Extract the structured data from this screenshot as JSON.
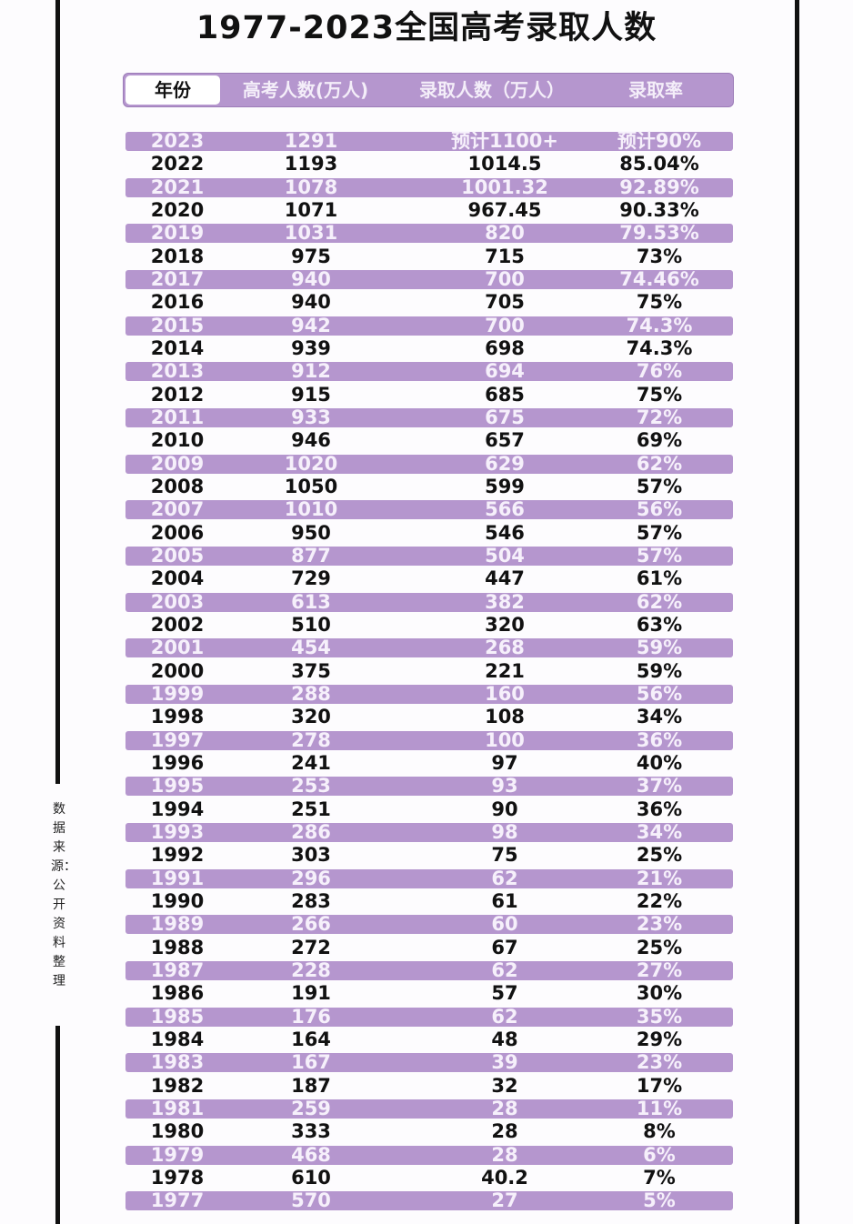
{
  "title": "1977-2023全国高考录取人数",
  "source_note": "数据来源：公开资料整理",
  "colors": {
    "row_highlight": "#b596ce",
    "text": "#111111",
    "highlight_text": "#f6f0fb"
  },
  "chart_data": {
    "type": "table",
    "title": "1977-2023全国高考录取人数",
    "columns": [
      "年份",
      "高考人数(万人)",
      "录取人数（万人）",
      "录取率"
    ],
    "rows": [
      [
        "2023",
        "1291",
        "预计1100+",
        "预计90%"
      ],
      [
        "2022",
        "1193",
        "1014.5",
        "85.04%"
      ],
      [
        "2021",
        "1078",
        "1001.32",
        "92.89%"
      ],
      [
        "2020",
        "1071",
        "967.45",
        "90.33%"
      ],
      [
        "2019",
        "1031",
        "820",
        "79.53%"
      ],
      [
        "2018",
        "975",
        "715",
        "73%"
      ],
      [
        "2017",
        "940",
        "700",
        "74.46%"
      ],
      [
        "2016",
        "940",
        "705",
        "75%"
      ],
      [
        "2015",
        "942",
        "700",
        "74.3%"
      ],
      [
        "2014",
        "939",
        "698",
        "74.3%"
      ],
      [
        "2013",
        "912",
        "694",
        "76%"
      ],
      [
        "2012",
        "915",
        "685",
        "75%"
      ],
      [
        "2011",
        "933",
        "675",
        "72%"
      ],
      [
        "2010",
        "946",
        "657",
        "69%"
      ],
      [
        "2009",
        "1020",
        "629",
        "62%"
      ],
      [
        "2008",
        "1050",
        "599",
        "57%"
      ],
      [
        "2007",
        "1010",
        "566",
        "56%"
      ],
      [
        "2006",
        "950",
        "546",
        "57%"
      ],
      [
        "2005",
        "877",
        "504",
        "57%"
      ],
      [
        "2004",
        "729",
        "447",
        "61%"
      ],
      [
        "2003",
        "613",
        "382",
        "62%"
      ],
      [
        "2002",
        "510",
        "320",
        "63%"
      ],
      [
        "2001",
        "454",
        "268",
        "59%"
      ],
      [
        "2000",
        "375",
        "221",
        "59%"
      ],
      [
        "1999",
        "288",
        "160",
        "56%"
      ],
      [
        "1998",
        "320",
        "108",
        "34%"
      ],
      [
        "1997",
        "278",
        "100",
        "36%"
      ],
      [
        "1996",
        "241",
        "97",
        "40%"
      ],
      [
        "1995",
        "253",
        "93",
        "37%"
      ],
      [
        "1994",
        "251",
        "90",
        "36%"
      ],
      [
        "1993",
        "286",
        "98",
        "34%"
      ],
      [
        "1992",
        "303",
        "75",
        "25%"
      ],
      [
        "1991",
        "296",
        "62",
        "21%"
      ],
      [
        "1990",
        "283",
        "61",
        "22%"
      ],
      [
        "1989",
        "266",
        "60",
        "23%"
      ],
      [
        "1988",
        "272",
        "67",
        "25%"
      ],
      [
        "1987",
        "228",
        "62",
        "27%"
      ],
      [
        "1986",
        "191",
        "57",
        "30%"
      ],
      [
        "1985",
        "176",
        "62",
        "35%"
      ],
      [
        "1984",
        "164",
        "48",
        "29%"
      ],
      [
        "1983",
        "167",
        "39",
        "23%"
      ],
      [
        "1982",
        "187",
        "32",
        "17%"
      ],
      [
        "1981",
        "259",
        "28",
        "11%"
      ],
      [
        "1980",
        "333",
        "28",
        "8%"
      ],
      [
        "1979",
        "468",
        "28",
        "6%"
      ],
      [
        "1978",
        "610",
        "40.2",
        "7%"
      ],
      [
        "1977",
        "570",
        "27",
        "5%"
      ]
    ]
  }
}
